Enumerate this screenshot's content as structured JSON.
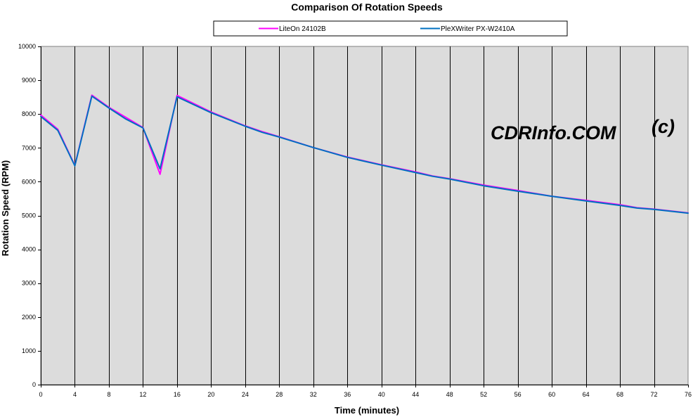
{
  "chart_data": {
    "type": "line",
    "title": "Comparison Of Rotation Speeds",
    "xlabel": "Time (minutes)",
    "ylabel": "Rotation Speed (RPM)",
    "xlim": [
      0,
      76
    ],
    "ylim": [
      0,
      10000
    ],
    "x_ticks": [
      0,
      4,
      8,
      12,
      16,
      20,
      24,
      28,
      32,
      36,
      40,
      44,
      48,
      52,
      56,
      60,
      64,
      68,
      72,
      76
    ],
    "y_ticks": [
      0,
      1000,
      2000,
      3000,
      4000,
      5000,
      6000,
      7000,
      8000,
      9000,
      10000
    ],
    "vertical_gridlines": true,
    "horizontal_gridlines": false,
    "legend_position": "top",
    "plot_background": "#DCDCDC",
    "series": [
      {
        "name": "LiteOn 24102B",
        "color": "#FF00FF",
        "points": [
          [
            0,
            7970
          ],
          [
            2,
            7550
          ],
          [
            4,
            6480
          ],
          [
            6,
            8560
          ],
          [
            8,
            8200
          ],
          [
            10,
            7900
          ],
          [
            12,
            7600
          ],
          [
            14,
            6220
          ],
          [
            16,
            8550
          ],
          [
            20,
            8060
          ],
          [
            24,
            7650
          ],
          [
            26,
            7480
          ],
          [
            28,
            7330
          ],
          [
            32,
            7010
          ],
          [
            36,
            6730
          ],
          [
            40,
            6500
          ],
          [
            44,
            6290
          ],
          [
            46,
            6170
          ],
          [
            48,
            6090
          ],
          [
            52,
            5900
          ],
          [
            56,
            5740
          ],
          [
            60,
            5570
          ],
          [
            64,
            5450
          ],
          [
            68,
            5320
          ],
          [
            70,
            5230
          ],
          [
            72,
            5190
          ],
          [
            76,
            5080
          ]
        ]
      },
      {
        "name": "PleXWriter PX-W2410A",
        "color": "#0070C0",
        "points": [
          [
            0,
            7930
          ],
          [
            2,
            7520
          ],
          [
            4,
            6470
          ],
          [
            6,
            8530
          ],
          [
            8,
            8180
          ],
          [
            10,
            7850
          ],
          [
            12,
            7590
          ],
          [
            14,
            6380
          ],
          [
            16,
            8510
          ],
          [
            20,
            8040
          ],
          [
            24,
            7640
          ],
          [
            26,
            7460
          ],
          [
            28,
            7320
          ],
          [
            32,
            7010
          ],
          [
            36,
            6720
          ],
          [
            40,
            6490
          ],
          [
            44,
            6270
          ],
          [
            46,
            6160
          ],
          [
            48,
            6080
          ],
          [
            52,
            5880
          ],
          [
            56,
            5720
          ],
          [
            60,
            5570
          ],
          [
            64,
            5430
          ],
          [
            68,
            5300
          ],
          [
            70,
            5220
          ],
          [
            72,
            5180
          ],
          [
            76,
            5070
          ]
        ]
      }
    ],
    "annotation": "CDRInfo.COM",
    "annotation_suffix": "(c)"
  }
}
